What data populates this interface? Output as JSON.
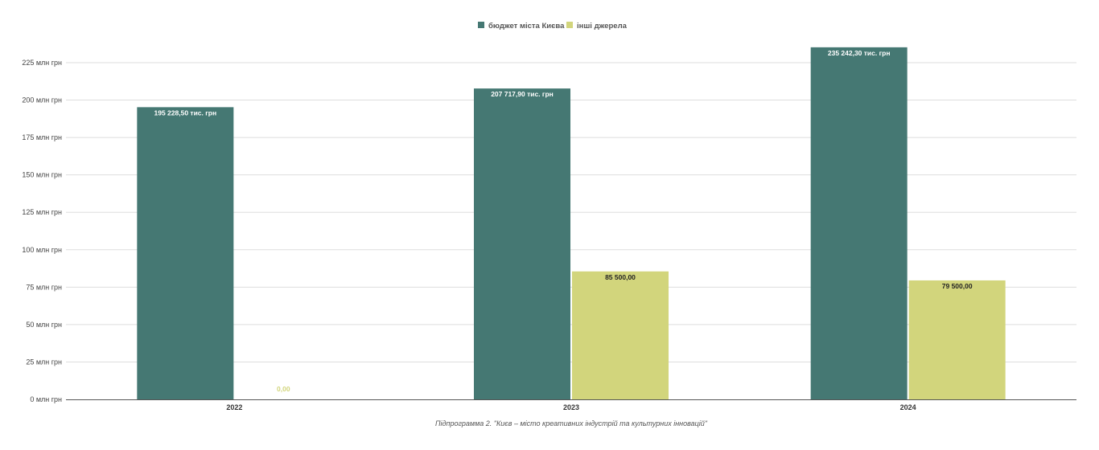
{
  "chart_data": {
    "type": "bar",
    "title": "",
    "subtitle": "Підпрограмма 2. \"Києв – місто креативних індустрій та культурних інновацій\"",
    "categories": [
      "2022",
      "2023",
      "2024"
    ],
    "series": [
      {
        "name": "бюджет міста Києва",
        "color": "#457873",
        "values": [
          195228.5,
          207717.9,
          235242.3
        ],
        "data_labels": [
          "195 228,50 тис. грн",
          "207 717,90 тис. грн",
          "235 242,30 тис. грн"
        ],
        "label_color": "#ffffff"
      },
      {
        "name": "інші джерела",
        "color": "#d2d57c",
        "values": [
          0,
          85500,
          79500
        ],
        "data_labels": [
          "0,00",
          "85 500,00",
          "79 500,00"
        ],
        "label_color": "#222222"
      }
    ],
    "ylim": [
      0,
      240000
    ],
    "yticks": [
      0,
      25000,
      50000,
      75000,
      100000,
      125000,
      150000,
      175000,
      200000,
      225000
    ],
    "ytick_labels": [
      "0 млн грн",
      "25 млн грн",
      "50 млн грн",
      "75 млн грн",
      "100 млн грн",
      "125 млн грн",
      "150 млн грн",
      "175 млн грн",
      "200 млн грн",
      "225 млн грн"
    ],
    "xlabel": "",
    "ylabel": "",
    "grid": true,
    "legend_position": "top-center"
  }
}
